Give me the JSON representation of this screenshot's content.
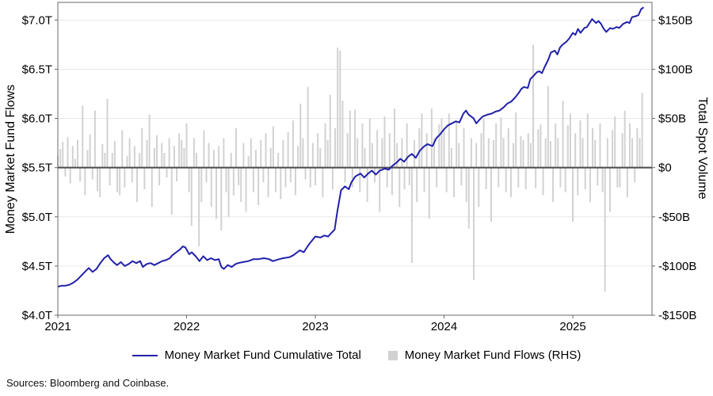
{
  "source_note": "Sources: Bloomberg and Coinbase.",
  "legend": {
    "line_label": "Money Market Fund Cumulative Total",
    "bar_label": "Money Market Fund Flows (RHS)"
  },
  "colors": {
    "line": "#2121aa",
    "bar": "#d2d2d2",
    "grid": "#e7e7e7",
    "zero_line": "#4a4a4a",
    "border": "#6a6a6a",
    "text": "#000000",
    "background": "#ffffff"
  },
  "chart_data": {
    "type": "line+bar",
    "title": "",
    "grid": true,
    "left_axis": {
      "label": "Money Market Fund Flows",
      "unit": "trillions USD",
      "range": [
        4.0,
        7.18
      ],
      "ticks": [
        {
          "label": "$7.0T",
          "value": 7.0
        },
        {
          "label": "$6.5T",
          "value": 6.5
        },
        {
          "label": "$6.0T",
          "value": 6.0
        },
        {
          "label": "$5.5T",
          "value": 5.5
        },
        {
          "label": "$5.0T",
          "value": 5.0
        },
        {
          "label": "$4.5T",
          "value": 4.5
        },
        {
          "label": "$4.0T",
          "value": 4.0
        }
      ]
    },
    "right_axis": {
      "label": "Total Spot Volume",
      "unit": "billions USD",
      "range": [
        -150,
        168
      ],
      "ticks": [
        {
          "label": "$150B",
          "value": 150
        },
        {
          "label": "$100B",
          "value": 100
        },
        {
          "label": "$50B",
          "value": 50
        },
        {
          "label": "$0",
          "value": 0
        },
        {
          "label": "-$50B",
          "value": -50
        },
        {
          "label": "-$100B",
          "value": -100
        },
        {
          "label": "-$150B",
          "value": -150
        }
      ]
    },
    "x_axis": {
      "range": [
        2021.0,
        2025.615
      ],
      "ticks": [
        {
          "label": "2021",
          "value": 2021
        },
        {
          "label": "2022",
          "value": 2022
        },
        {
          "label": "2023",
          "value": 2023
        },
        {
          "label": "2024",
          "value": 2024
        },
        {
          "label": "2025",
          "value": 2025
        }
      ]
    },
    "zero_line": {
      "axis": "right",
      "value": 0
    },
    "series": [
      {
        "name": "Money Market Fund Cumulative Total",
        "type": "line",
        "axis": "left",
        "points": [
          [
            2021.0,
            4.29
          ],
          [
            2021.03,
            4.3
          ],
          [
            2021.06,
            4.3
          ],
          [
            2021.09,
            4.31
          ],
          [
            2021.12,
            4.33
          ],
          [
            2021.15,
            4.36
          ],
          [
            2021.18,
            4.4
          ],
          [
            2021.21,
            4.44
          ],
          [
            2021.24,
            4.48
          ],
          [
            2021.27,
            4.44
          ],
          [
            2021.3,
            4.47
          ],
          [
            2021.33,
            4.53
          ],
          [
            2021.36,
            4.58
          ],
          [
            2021.39,
            4.61
          ],
          [
            2021.41,
            4.57
          ],
          [
            2021.44,
            4.53
          ],
          [
            2021.46,
            4.51
          ],
          [
            2021.49,
            4.54
          ],
          [
            2021.52,
            4.5
          ],
          [
            2021.55,
            4.52
          ],
          [
            2021.58,
            4.55
          ],
          [
            2021.61,
            4.53
          ],
          [
            2021.64,
            4.55
          ],
          [
            2021.66,
            4.49
          ],
          [
            2021.69,
            4.52
          ],
          [
            2021.72,
            4.53
          ],
          [
            2021.75,
            4.51
          ],
          [
            2021.78,
            4.53
          ],
          [
            2021.81,
            4.55
          ],
          [
            2021.84,
            4.56
          ],
          [
            2021.87,
            4.58
          ],
          [
            2021.89,
            4.61
          ],
          [
            2021.92,
            4.64
          ],
          [
            2021.95,
            4.67
          ],
          [
            2021.97,
            4.7
          ],
          [
            2021.99,
            4.69
          ],
          [
            2022.02,
            4.62
          ],
          [
            2022.04,
            4.64
          ],
          [
            2022.07,
            4.6
          ],
          [
            2022.1,
            4.55
          ],
          [
            2022.13,
            4.6
          ],
          [
            2022.16,
            4.56
          ],
          [
            2022.19,
            4.58
          ],
          [
            2022.22,
            4.56
          ],
          [
            2022.25,
            4.57
          ],
          [
            2022.27,
            4.49
          ],
          [
            2022.29,
            4.47
          ],
          [
            2022.32,
            4.51
          ],
          [
            2022.35,
            4.49
          ],
          [
            2022.38,
            4.52
          ],
          [
            2022.4,
            4.53
          ],
          [
            2022.44,
            4.54
          ],
          [
            2022.48,
            4.55
          ],
          [
            2022.52,
            4.57
          ],
          [
            2022.56,
            4.57
          ],
          [
            2022.6,
            4.58
          ],
          [
            2022.64,
            4.57
          ],
          [
            2022.67,
            4.55
          ],
          [
            2022.72,
            4.57
          ],
          [
            2022.75,
            4.58
          ],
          [
            2022.8,
            4.59
          ],
          [
            2022.83,
            4.61
          ],
          [
            2022.88,
            4.66
          ],
          [
            2022.91,
            4.64
          ],
          [
            2022.95,
            4.72
          ],
          [
            2023.0,
            4.8
          ],
          [
            2023.04,
            4.79
          ],
          [
            2023.07,
            4.81
          ],
          [
            2023.1,
            4.8
          ],
          [
            2023.12,
            4.83
          ],
          [
            2023.15,
            4.87
          ],
          [
            2023.17,
            5.05
          ],
          [
            2023.2,
            5.27
          ],
          [
            2023.23,
            5.31
          ],
          [
            2023.26,
            5.28
          ],
          [
            2023.28,
            5.35
          ],
          [
            2023.31,
            5.41
          ],
          [
            2023.35,
            5.44
          ],
          [
            2023.38,
            5.4
          ],
          [
            2023.41,
            5.44
          ],
          [
            2023.44,
            5.47
          ],
          [
            2023.47,
            5.43
          ],
          [
            2023.5,
            5.47
          ],
          [
            2023.54,
            5.49
          ],
          [
            2023.57,
            5.48
          ],
          [
            2023.6,
            5.52
          ],
          [
            2023.63,
            5.55
          ],
          [
            2023.66,
            5.59
          ],
          [
            2023.69,
            5.56
          ],
          [
            2023.72,
            5.61
          ],
          [
            2023.75,
            5.64
          ],
          [
            2023.78,
            5.6
          ],
          [
            2023.81,
            5.67
          ],
          [
            2023.84,
            5.71
          ],
          [
            2023.87,
            5.74
          ],
          [
            2023.91,
            5.72
          ],
          [
            2023.94,
            5.8
          ],
          [
            2023.97,
            5.84
          ],
          [
            2024.0,
            5.89
          ],
          [
            2024.03,
            5.93
          ],
          [
            2024.06,
            5.95
          ],
          [
            2024.09,
            5.97
          ],
          [
            2024.12,
            5.96
          ],
          [
            2024.15,
            6.05
          ],
          [
            2024.17,
            6.08
          ],
          [
            2024.19,
            6.04
          ],
          [
            2024.23,
            6.0
          ],
          [
            2024.25,
            5.95
          ],
          [
            2024.27,
            5.98
          ],
          [
            2024.3,
            6.02
          ],
          [
            2024.34,
            6.04
          ],
          [
            2024.37,
            6.05
          ],
          [
            2024.4,
            6.07
          ],
          [
            2024.43,
            6.08
          ],
          [
            2024.46,
            6.11
          ],
          [
            2024.49,
            6.15
          ],
          [
            2024.52,
            6.17
          ],
          [
            2024.55,
            6.21
          ],
          [
            2024.58,
            6.26
          ],
          [
            2024.6,
            6.3
          ],
          [
            2024.62,
            6.32
          ],
          [
            2024.65,
            6.31
          ],
          [
            2024.67,
            6.4
          ],
          [
            2024.7,
            6.44
          ],
          [
            2024.72,
            6.47
          ],
          [
            2024.74,
            6.48
          ],
          [
            2024.76,
            6.46
          ],
          [
            2024.78,
            6.52
          ],
          [
            2024.81,
            6.6
          ],
          [
            2024.83,
            6.67
          ],
          [
            2024.86,
            6.69
          ],
          [
            2024.88,
            6.65
          ],
          [
            2024.9,
            6.72
          ],
          [
            2024.92,
            6.75
          ],
          [
            2024.95,
            6.78
          ],
          [
            2024.97,
            6.81
          ],
          [
            2025.0,
            6.87
          ],
          [
            2025.02,
            6.85
          ],
          [
            2025.04,
            6.91
          ],
          [
            2025.06,
            6.87
          ],
          [
            2025.09,
            6.92
          ],
          [
            2025.11,
            6.93
          ],
          [
            2025.14,
            6.99
          ],
          [
            2025.15,
            7.01
          ],
          [
            2025.18,
            6.97
          ],
          [
            2025.2,
            6.99
          ],
          [
            2025.22,
            6.96
          ],
          [
            2025.24,
            6.91
          ],
          [
            2025.26,
            6.88
          ],
          [
            2025.29,
            6.92
          ],
          [
            2025.31,
            6.91
          ],
          [
            2025.34,
            6.93
          ],
          [
            2025.36,
            6.92
          ],
          [
            2025.39,
            6.96
          ],
          [
            2025.42,
            6.98
          ],
          [
            2025.44,
            6.97
          ],
          [
            2025.46,
            7.03
          ],
          [
            2025.49,
            7.04
          ],
          [
            2025.51,
            7.05
          ],
          [
            2025.53,
            7.11
          ],
          [
            2025.55,
            7.13
          ]
        ]
      },
      {
        "name": "Money Market Fund Flows (RHS)",
        "type": "bar",
        "axis": "right",
        "start_year": 2021.0,
        "step_years": 0.019231,
        "values": [
          12,
          19,
          26,
          -9,
          31,
          -16,
          22,
          9,
          28,
          -14,
          63,
          -28,
          18,
          34,
          -12,
          58,
          -24,
          -30,
          24,
          15,
          70,
          -18,
          15,
          27,
          -25,
          -28,
          38,
          -20,
          12,
          30,
          -15,
          22,
          -35,
          15,
          40,
          -22,
          28,
          54,
          -40,
          20,
          33,
          -18,
          25,
          15,
          -10,
          30,
          -48,
          22,
          -14,
          35,
          28,
          20,
          45,
          -25,
          -59,
          30,
          15,
          -80,
          -35,
          38,
          -15,
          25,
          -40,
          18,
          -52,
          22,
          -64,
          30,
          -25,
          -50,
          15,
          -28,
          40,
          -18,
          -35,
          25,
          -45,
          12,
          30,
          -25,
          18,
          -38,
          28,
          -15,
          35,
          -30,
          20,
          42,
          -25,
          15,
          -32,
          28,
          -20,
          36,
          -15,
          48,
          -28,
          22,
          65,
          30,
          -12,
          82,
          -20,
          25,
          -18,
          35,
          20,
          -30,
          45,
          28,
          74,
          -22,
          40,
          122,
          119,
          68,
          -15,
          35,
          58,
          -20,
          59,
          30,
          -25,
          45,
          20,
          -35,
          50,
          25,
          -15,
          38,
          -45,
          30,
          52,
          -20,
          35,
          -28,
          60,
          25,
          -40,
          30,
          -22,
          45,
          -18,
          -97,
          28,
          -35,
          40,
          55,
          -25,
          35,
          -52,
          60,
          30,
          -20,
          44,
          50,
          38,
          -25,
          55,
          20,
          -30,
          48,
          25,
          -18,
          40,
          -35,
          -62,
          30,
          -114,
          25,
          -40,
          35,
          50,
          -22,
          30,
          -55,
          28,
          45,
          -20,
          51,
          30,
          -25,
          40,
          -30,
          25,
          56,
          -20,
          32,
          28,
          -22,
          35,
          25,
          125,
          -21,
          39,
          44,
          -28,
          30,
          83,
          27,
          -35,
          45,
          30,
          -20,
          68,
          -25,
          43,
          55,
          -55,
          35,
          -28,
          48,
          30,
          -22,
          55,
          -35,
          40,
          28,
          -18,
          45,
          -25,
          -126,
          30,
          -45,
          38,
          52,
          -20,
          -20,
          35,
          58,
          -30,
          45,
          30,
          -15,
          40,
          30,
          76
        ]
      }
    ]
  }
}
